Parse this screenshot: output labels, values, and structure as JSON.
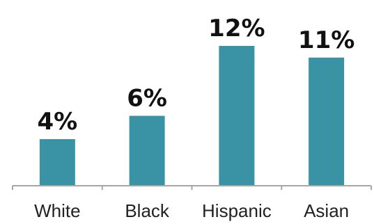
{
  "chart_data": {
    "type": "bar",
    "categories": [
      "White",
      "Black",
      "Hispanic",
      "Asian"
    ],
    "values": [
      4,
      6,
      12,
      11
    ],
    "data_labels": [
      "4%",
      "6%",
      "12%",
      "11%"
    ],
    "title": "",
    "xlabel": "",
    "ylabel": "",
    "ylim": [
      0,
      14
    ],
    "grid": false,
    "legend": "none",
    "colors": {
      "bar": "#3a92a5",
      "axis": "#a6a6a6",
      "label": "#111111",
      "tick_label": "#222222"
    }
  }
}
